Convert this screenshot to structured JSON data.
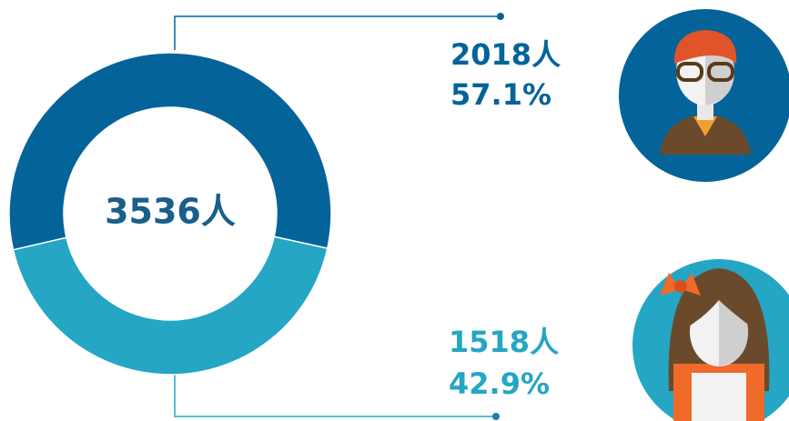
{
  "chart_data": {
    "type": "donut",
    "center_label": "3536人",
    "values": [
      2018,
      1518
    ],
    "value_labels": [
      "2018人",
      "1518人"
    ],
    "percent_labels": [
      "57.1%",
      "42.9%"
    ],
    "colors": [
      "#04649a",
      "#24a6c4"
    ]
  }
}
